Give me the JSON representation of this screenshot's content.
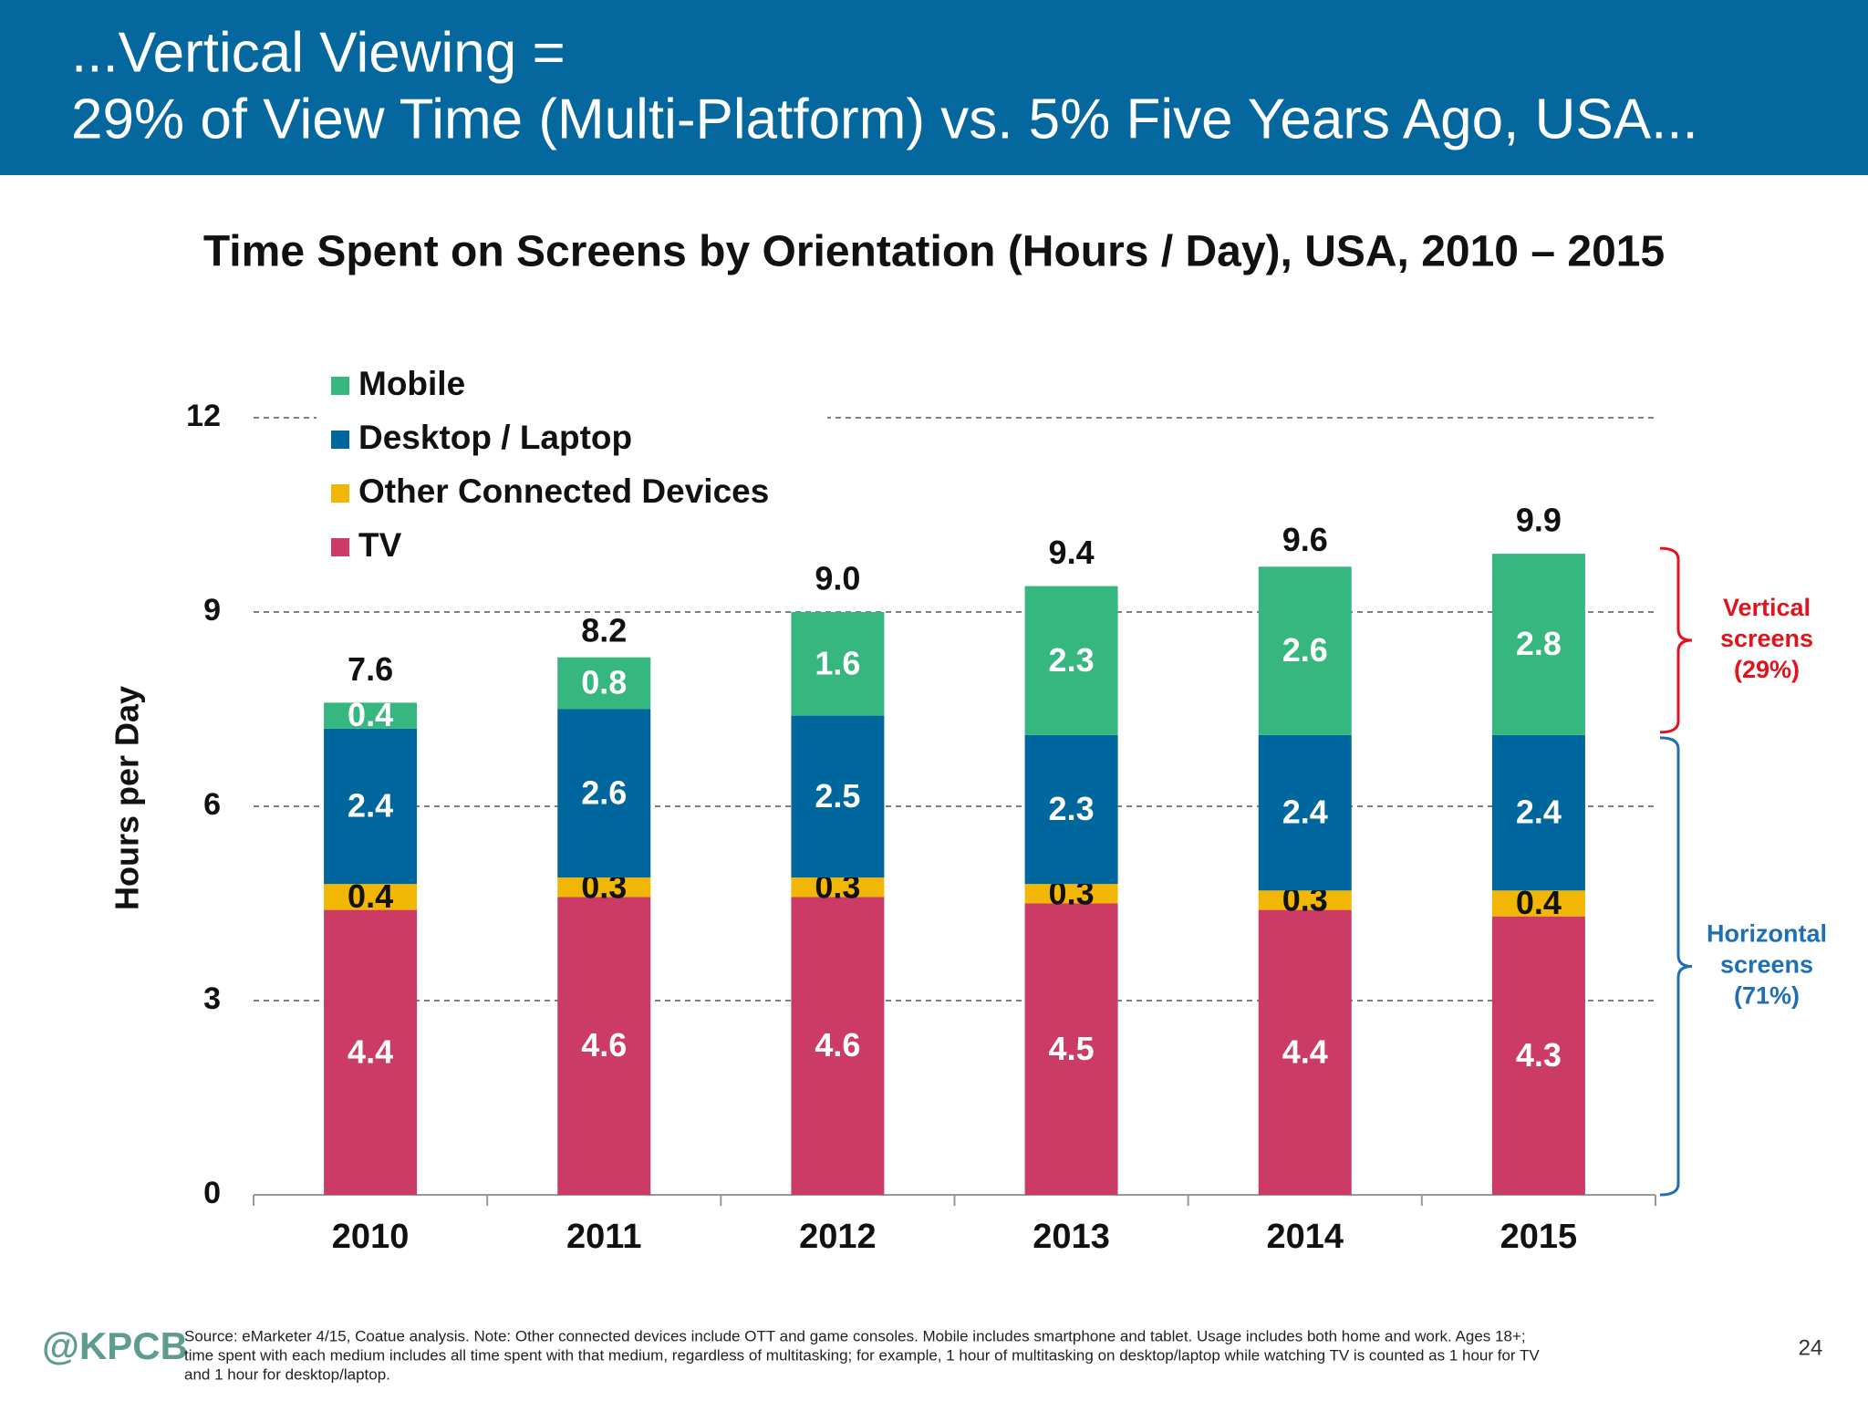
{
  "header": {
    "title_lines": [
      "...Vertical Viewing =",
      "29% of View Time (Multi-Platform) vs. 5% Five Years Ago, USA..."
    ]
  },
  "chart_data": {
    "type": "stacked-bar",
    "title": "Time Spent on Screens by Orientation (Hours / Day), USA, 2010 – 2015",
    "y_label": "Hours per Day",
    "categories": [
      "2010",
      "2011",
      "2012",
      "2013",
      "2014",
      "2015"
    ],
    "series": [
      {
        "name": "TV",
        "color": "#cc3a66",
        "label_color": "#ffffff",
        "values": [
          4.4,
          4.6,
          4.6,
          4.5,
          4.4,
          4.3
        ]
      },
      {
        "name": "Other Connected Devices",
        "color": "#f2b705",
        "label_color": "#111111",
        "values": [
          0.4,
          0.3,
          0.3,
          0.3,
          0.3,
          0.4
        ]
      },
      {
        "name": "Desktop / Laptop",
        "color": "#00669e",
        "label_color": "#ffffff",
        "values": [
          2.4,
          2.6,
          2.5,
          2.3,
          2.4,
          2.4
        ]
      },
      {
        "name": "Mobile",
        "color": "#36b77f",
        "label_color": "#ffffff",
        "values": [
          0.4,
          0.8,
          1.6,
          2.3,
          2.6,
          2.8
        ]
      }
    ],
    "totals": {
      "values": [
        7.6,
        8.2,
        9,
        9.4,
        9.6,
        9.9
      ],
      "value_labels": [
        "7.6",
        "8.2",
        "9.0",
        "9.4",
        "9.6",
        "9.9"
      ]
    },
    "ylim": [
      0,
      12
    ],
    "yticks": [
      0,
      3,
      6,
      9,
      12
    ],
    "grid": true,
    "legend": "top-left",
    "annotations": [
      {
        "lines": [
          "Vertical",
          "screens",
          "(29%)"
        ],
        "color": "#e0141e"
      },
      {
        "lines": [
          "Horizontal",
          "screens",
          "(71%)"
        ],
        "color": "#1f6fb5"
      }
    ]
  },
  "footer": {
    "logo": "@KPCB",
    "source_lines": [
      "Source: eMarketer 4/15, Coatue analysis. Note: Other connected devices include OTT and game consoles. Mobile includes smartphone and tablet. Usage includes both home and work. Ages 18+;",
      "time spent with each medium includes all time spent with that medium, regardless of multitasking; for example, 1 hour of multitasking on desktop/laptop while watching TV is counted as 1 hour for TV",
      "and 1 hour for desktop/laptop."
    ],
    "page_number": "24"
  }
}
